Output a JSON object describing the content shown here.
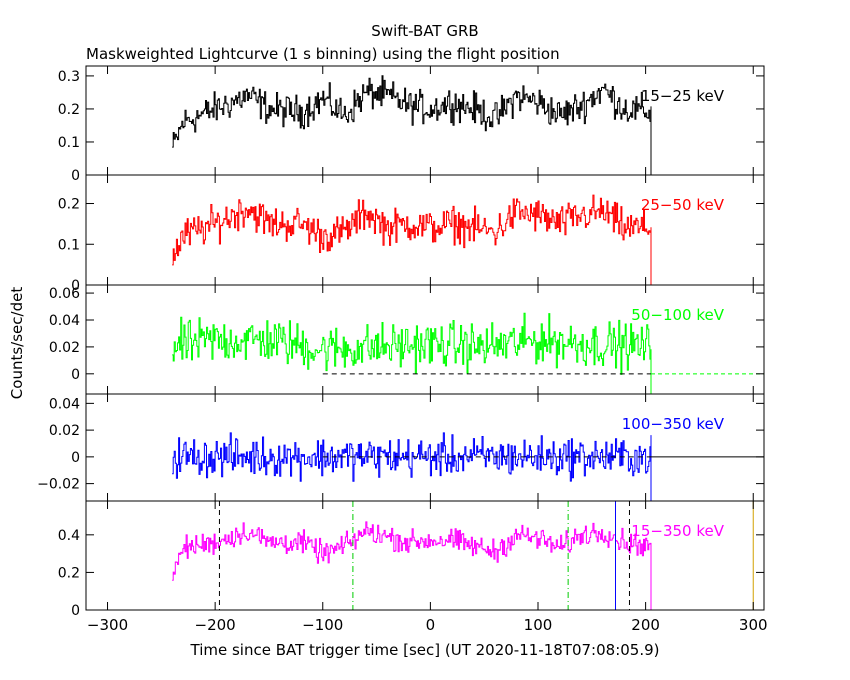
{
  "title": "Swift-BAT GRB",
  "subtitle": "Maskweighted Lightcurve (1 s binning) using the flight position",
  "ylabel": "Counts/sec/det",
  "xlabel": "Time since BAT trigger time [sec] (UT 2020-11-18T07:08:05.9)",
  "colors": {
    "black": "#000000",
    "red": "#ff0000",
    "green": "#00ff00",
    "blue": "#0000ff",
    "magenta": "#ff00ff",
    "green_dash": "#00cc00",
    "orange": "#d2a000"
  },
  "chart_data": {
    "type": "line",
    "x_range": [
      -320,
      310
    ],
    "x_ticks": [
      "−300",
      "−200",
      "−100",
      "0",
      "100",
      "200",
      "300"
    ],
    "x_tick_values": [
      -300,
      -200,
      -100,
      0,
      100,
      200,
      300
    ],
    "data_x_range": [
      -240,
      205
    ],
    "panels": [
      {
        "name": "15−25 keV",
        "color": "#000000",
        "ylim": [
          0,
          0.33
        ],
        "yticks": [
          0,
          0.1,
          0.2,
          0.3
        ],
        "ytick_labels": [
          "0",
          "0.1",
          "0.2",
          "0.3"
        ],
        "profile": [
          [
            -240,
            0.08
          ],
          [
            -230,
            0.16
          ],
          [
            -200,
            0.2
          ],
          [
            -170,
            0.24
          ],
          [
            -150,
            0.2
          ],
          [
            -120,
            0.19
          ],
          [
            -100,
            0.23
          ],
          [
            -80,
            0.18
          ],
          [
            -60,
            0.25
          ],
          [
            -40,
            0.24
          ],
          [
            -20,
            0.21
          ],
          [
            0,
            0.2
          ],
          [
            20,
            0.22
          ],
          [
            40,
            0.2
          ],
          [
            60,
            0.17
          ],
          [
            80,
            0.24
          ],
          [
            100,
            0.22
          ],
          [
            120,
            0.18
          ],
          [
            140,
            0.21
          ],
          [
            160,
            0.26
          ],
          [
            180,
            0.2
          ],
          [
            205,
            0.19
          ]
        ],
        "noise": 0.04,
        "zero_line": false,
        "markers": []
      },
      {
        "name": "25−50 keV",
        "color": "#ff0000",
        "ylim": [
          0,
          0.27
        ],
        "yticks": [
          0,
          0.1,
          0.2
        ],
        "ytick_labels": [
          "0",
          "0.1",
          "0.2"
        ],
        "profile": [
          [
            -240,
            0.07
          ],
          [
            -230,
            0.12
          ],
          [
            -200,
            0.15
          ],
          [
            -170,
            0.19
          ],
          [
            -150,
            0.15
          ],
          [
            -120,
            0.15
          ],
          [
            -100,
            0.12
          ],
          [
            -80,
            0.13
          ],
          [
            -60,
            0.18
          ],
          [
            -40,
            0.14
          ],
          [
            -20,
            0.15
          ],
          [
            0,
            0.14
          ],
          [
            20,
            0.15
          ],
          [
            40,
            0.14
          ],
          [
            60,
            0.13
          ],
          [
            80,
            0.18
          ],
          [
            100,
            0.17
          ],
          [
            120,
            0.15
          ],
          [
            140,
            0.17
          ],
          [
            160,
            0.18
          ],
          [
            180,
            0.14
          ],
          [
            205,
            0.14
          ]
        ],
        "noise": 0.035,
        "zero_line": false,
        "markers": []
      },
      {
        "name": "50−100 keV",
        "color": "#00ff00",
        "ylim": [
          -0.015,
          0.066
        ],
        "yticks": [
          0,
          0.02,
          0.04,
          0.06
        ],
        "ytick_labels": [
          "0",
          "0.02",
          "0.04",
          "0.06"
        ],
        "profile": [
          [
            -240,
            0.02
          ],
          [
            -200,
            0.025
          ],
          [
            -150,
            0.025
          ],
          [
            -100,
            0.018
          ],
          [
            -50,
            0.02
          ],
          [
            0,
            0.022
          ],
          [
            50,
            0.02
          ],
          [
            100,
            0.025
          ],
          [
            150,
            0.022
          ],
          [
            205,
            0.02
          ]
        ],
        "noise": 0.014,
        "zero_line": true,
        "markers": []
      },
      {
        "name": "100−350 keV",
        "color": "#0000ff",
        "ylim": [
          -0.033,
          0.047
        ],
        "yticks": [
          -0.02,
          0,
          0.02,
          0.04
        ],
        "ytick_labels": [
          "−0.02",
          "0",
          "0.02",
          "0.04"
        ],
        "profile": [
          [
            -240,
            0.0
          ],
          [
            205,
            0.0
          ]
        ],
        "noise": 0.012,
        "zero_line": true,
        "markers": []
      },
      {
        "name": "15−350 keV",
        "color": "#ff00ff",
        "ylim": [
          0,
          0.58
        ],
        "yticks": [
          0,
          0.2,
          0.4
        ],
        "ytick_labels": [
          "0",
          "0.2",
          "0.4"
        ],
        "profile": [
          [
            -240,
            0.18
          ],
          [
            -230,
            0.33
          ],
          [
            -200,
            0.36
          ],
          [
            -170,
            0.42
          ],
          [
            -150,
            0.36
          ],
          [
            -120,
            0.36
          ],
          [
            -100,
            0.3
          ],
          [
            -80,
            0.34
          ],
          [
            -60,
            0.42
          ],
          [
            -40,
            0.39
          ],
          [
            -20,
            0.36
          ],
          [
            0,
            0.37
          ],
          [
            20,
            0.37
          ],
          [
            40,
            0.34
          ],
          [
            60,
            0.31
          ],
          [
            80,
            0.4
          ],
          [
            100,
            0.38
          ],
          [
            120,
            0.33
          ],
          [
            140,
            0.4
          ],
          [
            160,
            0.42
          ],
          [
            180,
            0.36
          ],
          [
            205,
            0.34
          ]
        ],
        "noise": 0.05,
        "zero_line": true,
        "markers": [
          {
            "x": -196,
            "color": "#000000",
            "style": "dash"
          },
          {
            "x": -72,
            "color": "#00cc00",
            "style": "dashdot"
          },
          {
            "x": 128,
            "color": "#00cc00",
            "style": "dashdot"
          },
          {
            "x": 172,
            "color": "#0000ff",
            "style": "solid"
          },
          {
            "x": 185,
            "color": "#000000",
            "style": "dash"
          },
          {
            "x": 300,
            "color": "#d2a000",
            "style": "solid"
          }
        ]
      }
    ]
  }
}
